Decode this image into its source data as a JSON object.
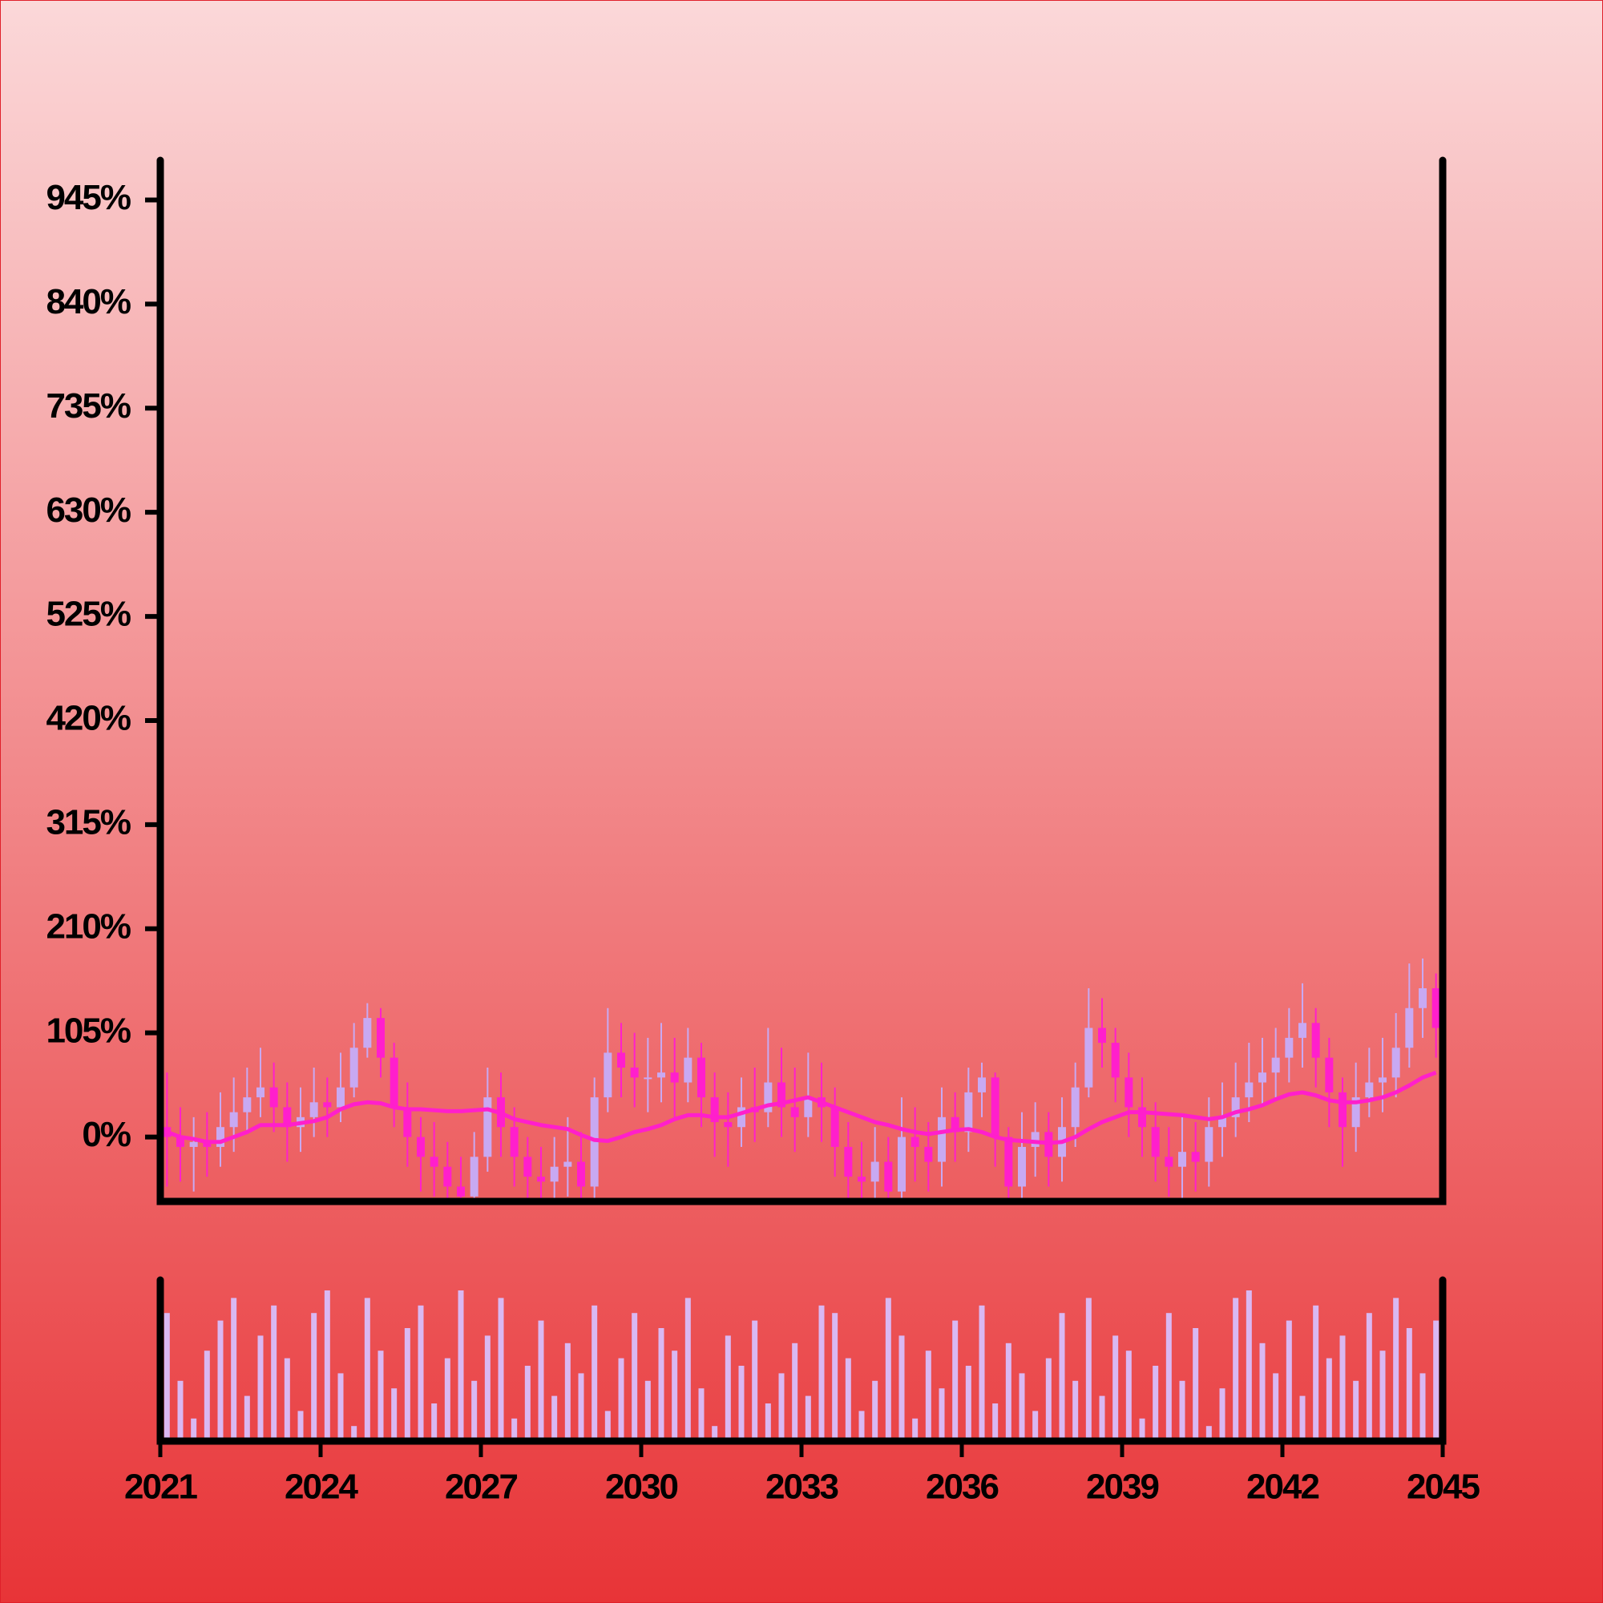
{
  "chart_data": {
    "type": "candlestick",
    "x": [
      2021.125,
      2021.375,
      2021.625,
      2021.875,
      2022.125,
      2022.375,
      2022.625,
      2022.875,
      2023.125,
      2023.375,
      2023.625,
      2023.875,
      2024.125,
      2024.375,
      2024.625,
      2024.875,
      2025.125,
      2025.375,
      2025.625,
      2025.875,
      2026.125,
      2026.375,
      2026.625,
      2026.875,
      2027.125,
      2027.375,
      2027.625,
      2027.875,
      2028.125,
      2028.375,
      2028.625,
      2028.875,
      2029.125,
      2029.375,
      2029.625,
      2029.875,
      2030.125,
      2030.375,
      2030.625,
      2030.875,
      2031.125,
      2031.375,
      2031.625,
      2031.875,
      2032.125,
      2032.375,
      2032.625,
      2032.875,
      2033.125,
      2033.375,
      2033.625,
      2033.875,
      2034.125,
      2034.375,
      2034.625,
      2034.875,
      2035.125,
      2035.375,
      2035.625,
      2035.875,
      2036.125,
      2036.375,
      2036.625,
      2036.875,
      2037.125,
      2037.375,
      2037.625,
      2037.875,
      2038.125,
      2038.375,
      2038.625,
      2038.875,
      2039.125,
      2039.375,
      2039.625,
      2039.875,
      2040.125,
      2040.375,
      2040.625,
      2040.875,
      2041.125,
      2041.375,
      2041.625,
      2041.875,
      2042.125,
      2042.375,
      2042.625,
      2042.875,
      2043.125,
      2043.375,
      2043.625,
      2043.875,
      2044.125,
      2044.375,
      2044.625,
      2044.875
    ],
    "open": [
      10,
      0,
      -10,
      -5,
      -10,
      10,
      25,
      40,
      50,
      30,
      10,
      20,
      35,
      30,
      50,
      90,
      120,
      80,
      30,
      0,
      -20,
      -30,
      -50,
      -60,
      -20,
      40,
      10,
      -20,
      -40,
      -45,
      -30,
      -25,
      -50,
      40,
      85,
      70,
      60,
      60,
      65,
      55,
      80,
      40,
      15,
      10,
      30,
      25,
      55,
      30,
      20,
      40,
      30,
      -10,
      -40,
      -45,
      -25,
      -55,
      0,
      -10,
      -25,
      20,
      5,
      45,
      60,
      0,
      -50,
      -10,
      5,
      -20,
      10,
      50,
      110,
      95,
      60,
      30,
      10,
      -20,
      -30,
      -15,
      -25,
      10,
      20,
      40,
      55,
      65,
      80,
      100,
      115,
      80,
      45,
      10,
      40,
      55,
      60,
      90,
      130,
      150
    ],
    "high": [
      65,
      30,
      20,
      25,
      45,
      60,
      70,
      90,
      75,
      55,
      50,
      70,
      60,
      85,
      115,
      135,
      130,
      95,
      55,
      20,
      15,
      -5,
      -20,
      5,
      70,
      65,
      30,
      0,
      -10,
      0,
      20,
      5,
      60,
      130,
      115,
      105,
      100,
      115,
      100,
      110,
      95,
      65,
      45,
      60,
      70,
      110,
      90,
      70,
      85,
      75,
      50,
      15,
      -5,
      10,
      0,
      40,
      30,
      15,
      50,
      45,
      70,
      75,
      65,
      10,
      25,
      35,
      25,
      40,
      75,
      150,
      140,
      110,
      85,
      60,
      35,
      10,
      20,
      15,
      40,
      55,
      75,
      95,
      100,
      110,
      130,
      155,
      130,
      100,
      60,
      75,
      90,
      100,
      125,
      175,
      180,
      165
    ],
    "low": [
      -50,
      -45,
      -55,
      -40,
      -30,
      -15,
      5,
      20,
      5,
      -25,
      -15,
      0,
      0,
      15,
      40,
      80,
      60,
      10,
      -30,
      -55,
      -60,
      -65,
      -65,
      -65,
      -35,
      -20,
      -50,
      -65,
      -65,
      -65,
      -60,
      -65,
      -65,
      25,
      40,
      30,
      25,
      35,
      20,
      35,
      10,
      -20,
      -30,
      -10,
      -5,
      10,
      0,
      -15,
      0,
      -5,
      -40,
      -65,
      -65,
      -65,
      -65,
      -65,
      -45,
      -55,
      -50,
      -25,
      -15,
      20,
      -30,
      -65,
      -65,
      -40,
      -50,
      -45,
      -10,
      40,
      70,
      35,
      0,
      -20,
      -45,
      -60,
      -65,
      -55,
      -50,
      -20,
      0,
      15,
      30,
      40,
      55,
      70,
      50,
      10,
      -30,
      -15,
      20,
      25,
      40,
      70,
      100,
      80
    ],
    "close": [
      0,
      -10,
      -5,
      -10,
      10,
      25,
      40,
      50,
      30,
      10,
      20,
      35,
      30,
      50,
      90,
      120,
      80,
      30,
      0,
      -20,
      -30,
      -50,
      -60,
      -20,
      40,
      10,
      -20,
      -40,
      -45,
      -30,
      -25,
      -50,
      40,
      85,
      70,
      60,
      60,
      65,
      55,
      80,
      40,
      15,
      10,
      30,
      25,
      55,
      30,
      20,
      40,
      30,
      -10,
      -40,
      -45,
      -25,
      -55,
      0,
      -10,
      -25,
      20,
      5,
      45,
      60,
      0,
      -50,
      -10,
      5,
      -20,
      10,
      50,
      110,
      95,
      60,
      30,
      10,
      -20,
      -30,
      -15,
      -25,
      10,
      20,
      40,
      55,
      65,
      80,
      100,
      115,
      80,
      45,
      10,
      40,
      55,
      60,
      90,
      130,
      150,
      110
    ],
    "moving_average": [
      5,
      0,
      -2,
      -5,
      -5,
      0,
      5,
      12,
      12,
      12,
      14,
      16,
      20,
      28,
      33,
      35,
      34,
      30,
      28,
      28,
      27,
      26,
      26,
      27,
      28,
      24,
      18,
      15,
      12,
      10,
      8,
      2,
      -3,
      -4,
      0,
      5,
      8,
      12,
      18,
      22,
      22,
      20,
      20,
      24,
      28,
      32,
      34,
      37,
      40,
      35,
      30,
      25,
      20,
      15,
      12,
      8,
      5,
      3,
      5,
      7,
      8,
      5,
      0,
      -3,
      -4,
      -5,
      -6,
      -5,
      0,
      8,
      15,
      20,
      25,
      25,
      24,
      23,
      22,
      20,
      18,
      20,
      25,
      28,
      32,
      38,
      43,
      45,
      42,
      37,
      35,
      35,
      37,
      40,
      45,
      52,
      60,
      65
    ],
    "volume": [
      85,
      40,
      15,
      60,
      80,
      95,
      30,
      70,
      90,
      55,
      20,
      85,
      100,
      45,
      10,
      95,
      60,
      35,
      75,
      90,
      25,
      55,
      100,
      40,
      70,
      95,
      15,
      50,
      80,
      30,
      65,
      45,
      90,
      20,
      55,
      85,
      40,
      75,
      60,
      95,
      35,
      10,
      70,
      50,
      80,
      25,
      45,
      65,
      30,
      90,
      85,
      55,
      20,
      40,
      95,
      70,
      15,
      60,
      35,
      80,
      50,
      90,
      25,
      65,
      45,
      20,
      55,
      85,
      40,
      95,
      30,
      70,
      60,
      15,
      50,
      85,
      40,
      75,
      10,
      35,
      95,
      100,
      65,
      45,
      80,
      30,
      90,
      55,
      70,
      40,
      85,
      60,
      95,
      75,
      45,
      80
    ],
    "up_color": "#c8a9f2",
    "down_color": "#ff1fcc",
    "ma_color": "#ff1fcb",
    "volume_color": "#d9b8f2",
    "xlim": [
      2021,
      2045
    ],
    "xticks": [
      2021,
      2024,
      2027,
      2030,
      2033,
      2036,
      2039,
      2042,
      2045
    ],
    "ylim": [
      -65,
      985
    ],
    "yticks": [
      {
        "value": 0,
        "label": "0%"
      },
      {
        "value": 105,
        "label": "105%"
      },
      {
        "value": 210,
        "label": "210%"
      },
      {
        "value": 315,
        "label": "315%"
      },
      {
        "value": 420,
        "label": "420%"
      },
      {
        "value": 525,
        "label": "525%"
      },
      {
        "value": 630,
        "label": "630%"
      },
      {
        "value": 735,
        "label": "735%"
      },
      {
        "value": 840,
        "label": "840%"
      },
      {
        "value": 945,
        "label": "945%"
      }
    ]
  }
}
